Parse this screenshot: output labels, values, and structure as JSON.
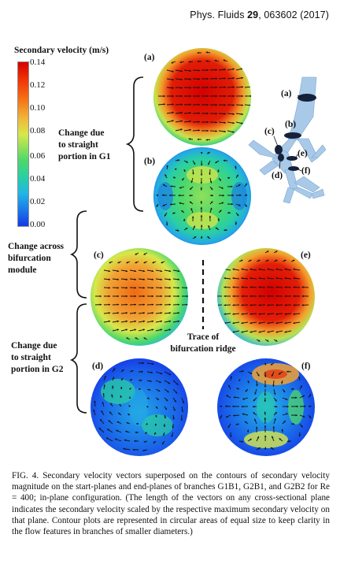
{
  "header": {
    "journal": "Phys. Fluids",
    "volume": "29",
    "rest": ", 063602 (2017)"
  },
  "colorbar": {
    "title": "Secondary velocity (m/s)",
    "ticks": [
      "0.14",
      "0.12",
      "0.10",
      "0.08",
      "0.06",
      "0.04",
      "0.02",
      "0.00"
    ]
  },
  "labels": {
    "g1_line1": "Change due",
    "g1_line2": "to straight",
    "g1_line3": "portion in G1",
    "bif_line1": "Change across",
    "bif_line2": "bifurcation",
    "bif_line3": "module",
    "g2_line1": "Change due",
    "g2_line2": "to straight",
    "g2_line3": "portion in G2",
    "trace_line1": "Trace of",
    "trace_line2": "bifurcation ridge"
  },
  "panels": {
    "a": "(a)",
    "b": "(b)",
    "c": "(c)",
    "d": "(d)",
    "e": "(e)",
    "f": "(f)"
  },
  "caption": {
    "fig": "FIG. 4.",
    "text": "Secondary velocity vectors superposed on the contours of secondary velocity magnitude on the start-planes and end-planes of branches G1B1, G2B1, and G2B2 for Re = 400; in-plane configuration. (The length of the vectors on any cross-sectional plane indicates the secondary velocity scaled by the respective maximum secondary velocity on that plane. Contour plots are represented in circular areas of equal size to keep clarity in the flow features in branches of smaller diameters.)"
  },
  "colors": {
    "red": "#d40000",
    "orange": "#f47a17",
    "yellow": "#d8e84a",
    "green": "#4dd86b",
    "cyan": "#29cfa3",
    "blue": "#1438e6"
  }
}
